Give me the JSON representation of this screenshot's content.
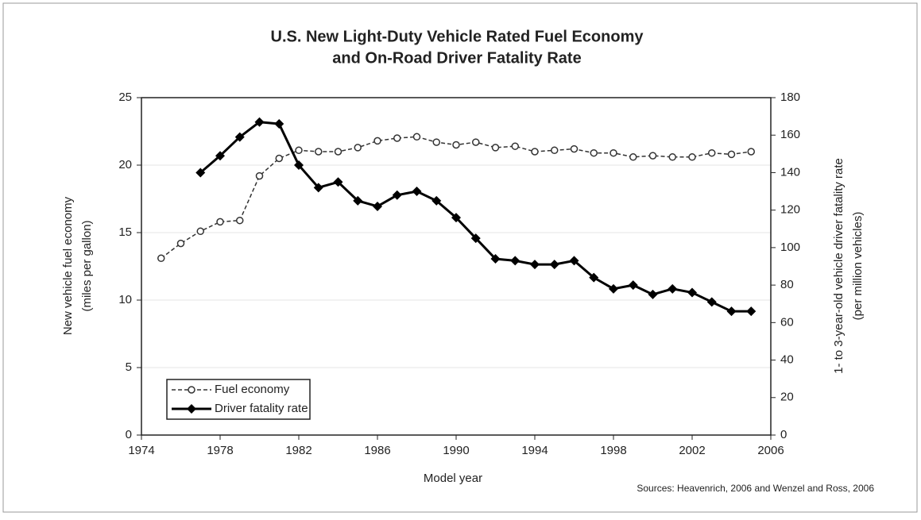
{
  "chart_data": {
    "type": "line",
    "title": [
      "U.S. New Light-Duty Vehicle Rated Fuel Economy",
      "and On-Road Driver Fatality Rate"
    ],
    "x_label": "Model year",
    "y_label": [
      "New vehicle fuel economy",
      "(miles per gallon)"
    ],
    "y2_label": [
      "1- to 3-year-old vehicle driver fatality rate",
      "(per million vehicles)"
    ],
    "source": "Sources: Heavenrich, 2006 and Wenzel and Ross, 2006",
    "x": [
      1975,
      1976,
      1977,
      1978,
      1979,
      1980,
      1981,
      1982,
      1983,
      1984,
      1985,
      1986,
      1987,
      1988,
      1989,
      1990,
      1991,
      1992,
      1993,
      1994,
      1995,
      1996,
      1997,
      1998,
      1999,
      2000,
      2001,
      2002,
      2003,
      2004,
      2005
    ],
    "series": [
      {
        "name": "Fuel economy",
        "color": "#333333",
        "axis": "y",
        "values": [
          13.1,
          14.2,
          15.1,
          15.8,
          15.9,
          19.2,
          20.5,
          21.1,
          21.0,
          21.0,
          21.3,
          21.8,
          22.0,
          22.1,
          21.7,
          21.5,
          21.7,
          21.3,
          21.4,
          21.0,
          21.1,
          21.2,
          20.9,
          20.9,
          20.6,
          20.7,
          20.6,
          20.6,
          20.9,
          20.8,
          21.0
        ]
      },
      {
        "name": "Driver fatality rate",
        "color": "#000000",
        "axis": "y2",
        "values": [
          null,
          null,
          140,
          149,
          159,
          167,
          166,
          144,
          132,
          135,
          125,
          122,
          128,
          130,
          125,
          116,
          105,
          94,
          93,
          91,
          91,
          93,
          84,
          78,
          80,
          75,
          78,
          76,
          71,
          66,
          66
        ]
      }
    ],
    "xlim": [
      1974,
      2006
    ],
    "xticks": [
      1974,
      1978,
      1982,
      1986,
      1990,
      1994,
      1998,
      2002,
      2006
    ],
    "ylim": [
      0,
      25
    ],
    "yticks": [
      0,
      5,
      10,
      15,
      20,
      25
    ],
    "y2lim": [
      0,
      180
    ],
    "y2ticks": [
      0,
      20,
      40,
      60,
      80,
      100,
      120,
      140,
      160,
      180
    ],
    "grid": true,
    "legend": "lower left"
  }
}
